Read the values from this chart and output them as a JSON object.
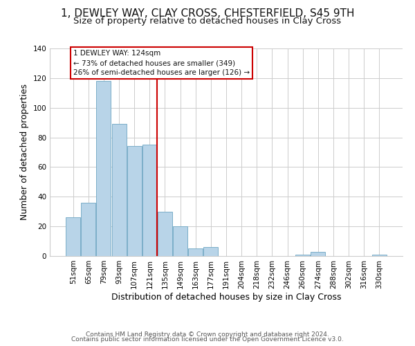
{
  "title": "1, DEWLEY WAY, CLAY CROSS, CHESTERFIELD, S45 9TH",
  "subtitle": "Size of property relative to detached houses in Clay Cross",
  "xlabel": "Distribution of detached houses by size in Clay Cross",
  "ylabel": "Number of detached properties",
  "bar_labels": [
    "51sqm",
    "65sqm",
    "79sqm",
    "93sqm",
    "107sqm",
    "121sqm",
    "135sqm",
    "149sqm",
    "163sqm",
    "177sqm",
    "191sqm",
    "204sqm",
    "218sqm",
    "232sqm",
    "246sqm",
    "260sqm",
    "274sqm",
    "288sqm",
    "302sqm",
    "316sqm",
    "330sqm"
  ],
  "bar_values": [
    26,
    36,
    118,
    89,
    74,
    75,
    30,
    20,
    5,
    6,
    0,
    0,
    0,
    0,
    0,
    1,
    3,
    0,
    0,
    0,
    1
  ],
  "bar_color": "#b8d4e8",
  "bar_edge_color": "#7aaec8",
  "vline_color": "#cc0000",
  "ylim": [
    0,
    140
  ],
  "yticks": [
    0,
    20,
    40,
    60,
    80,
    100,
    120,
    140
  ],
  "annotation_title": "1 DEWLEY WAY: 124sqm",
  "annotation_line1": "← 73% of detached houses are smaller (349)",
  "annotation_line2": "26% of semi-detached houses are larger (126) →",
  "annotation_box_color": "#ffffff",
  "annotation_box_edge": "#cc0000",
  "footer1": "Contains HM Land Registry data © Crown copyright and database right 2024.",
  "footer2": "Contains public sector information licensed under the Open Government Licence v3.0.",
  "title_fontsize": 11,
  "subtitle_fontsize": 9.5,
  "xlabel_fontsize": 9,
  "ylabel_fontsize": 9,
  "tick_fontsize": 7.5,
  "footer_fontsize": 6.5,
  "background_color": "#ffffff",
  "grid_color": "#cccccc"
}
